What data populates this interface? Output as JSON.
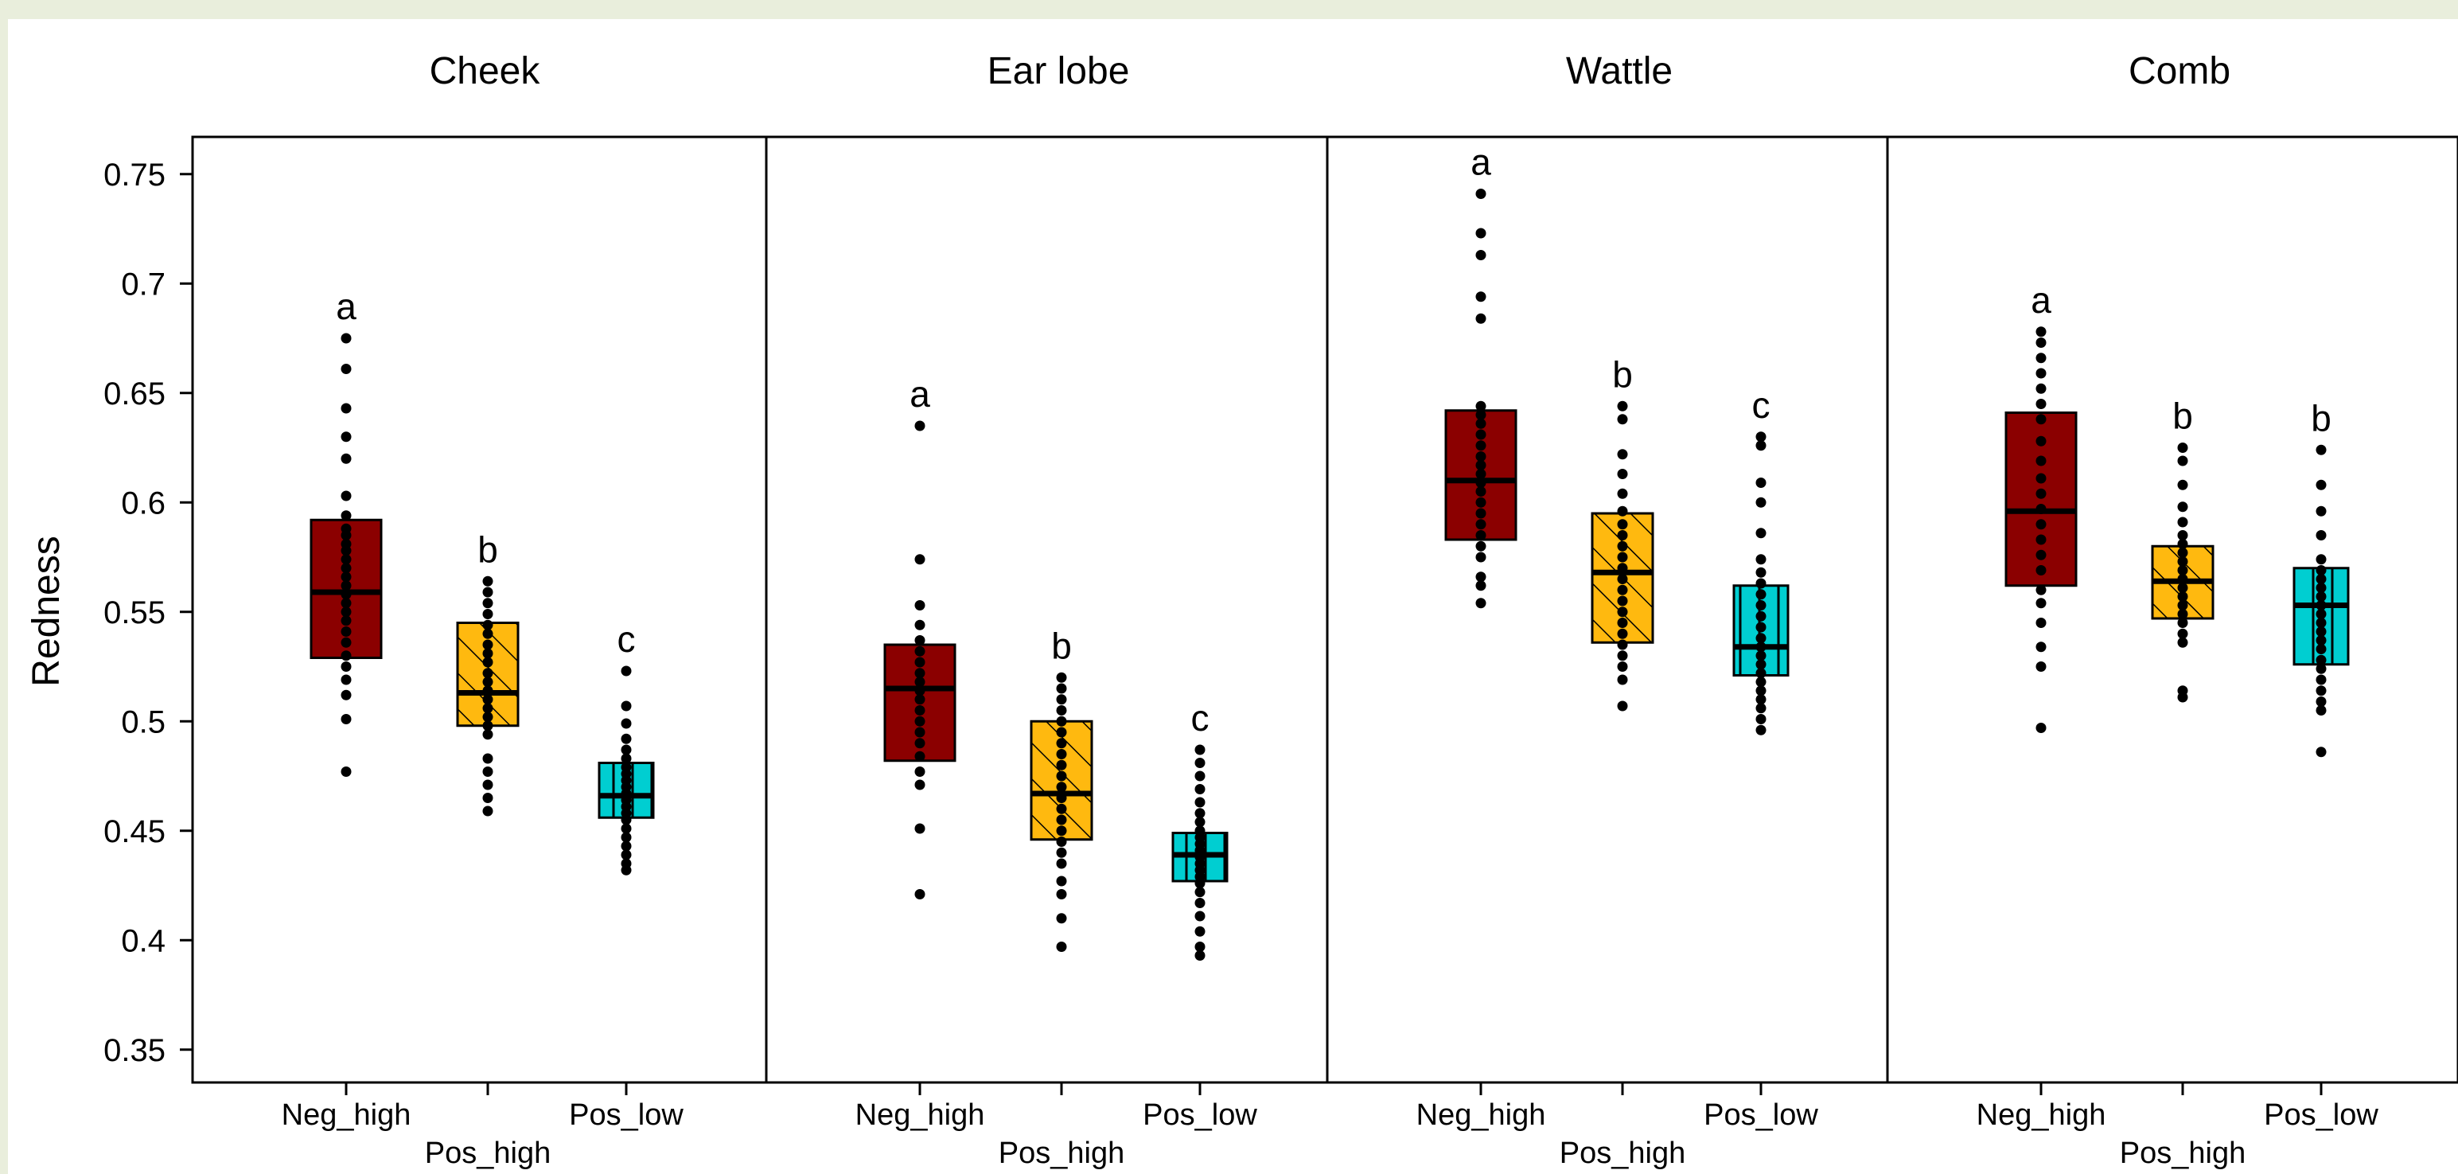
{
  "colors": {
    "background": "#ffffff",
    "frame": "#e9eedc",
    "axis": "#000000",
    "Neg_high": "#8b0000",
    "Pos_high": "#ffb90f",
    "Pos_low": "#00ced1",
    "points": "#000000"
  },
  "chart_data": {
    "type": "boxplot",
    "ylabel": "Redness",
    "ylim": [
      0.335,
      0.767
    ],
    "yticks": [
      0.35,
      0.4,
      0.45,
      0.5,
      0.55,
      0.6,
      0.65,
      0.7,
      0.75
    ],
    "ytick_labels": [
      "0.35",
      "0.4",
      "0.45",
      "0.5",
      "0.55",
      "0.6",
      "0.65",
      "0.7",
      "0.75"
    ],
    "groups": [
      "Neg_high",
      "Pos_high",
      "Pos_low"
    ],
    "group_patterns": {
      "Neg_high": "solid",
      "Pos_high": "diagonal-hatch",
      "Pos_low": "vertical-hatch"
    },
    "panels": [
      {
        "title": "Cheek",
        "boxes": [
          {
            "group": "Neg_high",
            "q1": 0.529,
            "median": 0.559,
            "q3": 0.592,
            "letter": "a",
            "points": [
              0.675,
              0.661,
              0.643,
              0.63,
              0.62,
              0.603,
              0.594,
              0.588,
              0.585,
              0.581,
              0.578,
              0.574,
              0.57,
              0.566,
              0.562,
              0.558,
              0.554,
              0.55,
              0.546,
              0.541,
              0.536,
              0.53,
              0.525,
              0.519,
              0.512,
              0.501,
              0.477
            ]
          },
          {
            "group": "Pos_high",
            "q1": 0.498,
            "median": 0.513,
            "q3": 0.545,
            "letter": "b",
            "points": [
              0.564,
              0.559,
              0.554,
              0.549,
              0.544,
              0.54,
              0.535,
              0.531,
              0.527,
              0.522,
              0.518,
              0.514,
              0.51,
              0.506,
              0.502,
              0.498,
              0.494,
              0.483,
              0.477,
              0.471,
              0.465,
              0.459
            ]
          },
          {
            "group": "Pos_low",
            "q1": 0.456,
            "median": 0.466,
            "q3": 0.481,
            "letter": "c",
            "points": [
              0.523,
              0.507,
              0.499,
              0.492,
              0.487,
              0.483,
              0.479,
              0.476,
              0.473,
              0.47,
              0.467,
              0.464,
              0.461,
              0.458,
              0.455,
              0.451,
              0.447,
              0.443,
              0.439,
              0.435,
              0.432
            ]
          }
        ]
      },
      {
        "title": "Ear lobe",
        "boxes": [
          {
            "group": "Neg_high",
            "q1": 0.482,
            "median": 0.515,
            "q3": 0.535,
            "letter": "a",
            "points": [
              0.635,
              0.574,
              0.553,
              0.544,
              0.537,
              0.532,
              0.527,
              0.522,
              0.518,
              0.514,
              0.51,
              0.505,
              0.5,
              0.495,
              0.49,
              0.484,
              0.477,
              0.471,
              0.451,
              0.421
            ]
          },
          {
            "group": "Pos_high",
            "q1": 0.446,
            "median": 0.467,
            "q3": 0.5,
            "letter": "b",
            "points": [
              0.52,
              0.515,
              0.51,
              0.505,
              0.5,
              0.495,
              0.49,
              0.485,
              0.48,
              0.475,
              0.47,
              0.465,
              0.46,
              0.455,
              0.45,
              0.445,
              0.44,
              0.435,
              0.427,
              0.421,
              0.41,
              0.397
            ]
          },
          {
            "group": "Pos_low",
            "q1": 0.427,
            "median": 0.439,
            "q3": 0.449,
            "letter": "c",
            "points": [
              0.487,
              0.481,
              0.475,
              0.469,
              0.463,
              0.458,
              0.454,
              0.45,
              0.447,
              0.444,
              0.441,
              0.438,
              0.435,
              0.432,
              0.429,
              0.426,
              0.422,
              0.417,
              0.411,
              0.404,
              0.397,
              0.393
            ]
          }
        ]
      },
      {
        "title": "Wattle",
        "boxes": [
          {
            "group": "Neg_high",
            "q1": 0.583,
            "median": 0.61,
            "q3": 0.642,
            "letter": "a",
            "points": [
              0.741,
              0.723,
              0.713,
              0.694,
              0.684,
              0.644,
              0.64,
              0.636,
              0.631,
              0.626,
              0.621,
              0.617,
              0.613,
              0.609,
              0.605,
              0.6,
              0.595,
              0.59,
              0.585,
              0.58,
              0.575,
              0.566,
              0.562,
              0.554
            ]
          },
          {
            "group": "Pos_high",
            "q1": 0.536,
            "median": 0.568,
            "q3": 0.595,
            "letter": "b",
            "points": [
              0.644,
              0.638,
              0.622,
              0.613,
              0.604,
              0.596,
              0.59,
              0.585,
              0.58,
              0.575,
              0.57,
              0.565,
              0.56,
              0.555,
              0.55,
              0.545,
              0.54,
              0.535,
              0.53,
              0.525,
              0.519,
              0.507
            ]
          },
          {
            "group": "Pos_low",
            "q1": 0.521,
            "median": 0.534,
            "q3": 0.562,
            "letter": "c",
            "points": [
              0.63,
              0.626,
              0.609,
              0.6,
              0.586,
              0.574,
              0.568,
              0.563,
              0.558,
              0.553,
              0.548,
              0.543,
              0.538,
              0.534,
              0.53,
              0.526,
              0.522,
              0.518,
              0.514,
              0.51,
              0.506,
              0.501,
              0.496
            ]
          }
        ]
      },
      {
        "title": "Comb",
        "boxes": [
          {
            "group": "Neg_high",
            "q1": 0.562,
            "median": 0.596,
            "q3": 0.641,
            "letter": "a",
            "points": [
              0.678,
              0.673,
              0.666,
              0.659,
              0.652,
              0.645,
              0.638,
              0.628,
              0.619,
              0.611,
              0.604,
              0.597,
              0.59,
              0.583,
              0.576,
              0.569,
              0.56,
              0.554,
              0.545,
              0.534,
              0.525,
              0.497
            ]
          },
          {
            "group": "Pos_high",
            "q1": 0.547,
            "median": 0.564,
            "q3": 0.58,
            "letter": "b",
            "points": [
              0.625,
              0.619,
              0.608,
              0.598,
              0.591,
              0.585,
              0.581,
              0.577,
              0.573,
              0.569,
              0.565,
              0.561,
              0.557,
              0.553,
              0.549,
              0.545,
              0.54,
              0.536,
              0.514,
              0.511
            ]
          },
          {
            "group": "Pos_low",
            "q1": 0.526,
            "median": 0.553,
            "q3": 0.57,
            "letter": "b",
            "points": [
              0.624,
              0.608,
              0.596,
              0.585,
              0.574,
              0.569,
              0.565,
              0.561,
              0.557,
              0.553,
              0.549,
              0.545,
              0.541,
              0.537,
              0.533,
              0.528,
              0.524,
              0.519,
              0.514,
              0.509,
              0.505,
              0.486
            ]
          }
        ]
      }
    ]
  }
}
